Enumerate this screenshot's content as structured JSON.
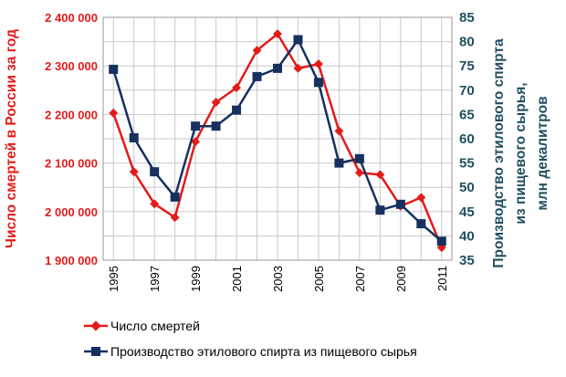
{
  "chart_data": {
    "type": "line",
    "x": [
      1995,
      1996,
      1997,
      1998,
      1999,
      2000,
      2001,
      2002,
      2003,
      2004,
      2005,
      2006,
      2007,
      2008,
      2009,
      2010,
      2011
    ],
    "x_tick_labels": [
      "1995",
      "1997",
      "1999",
      "2001",
      "2003",
      "2005",
      "2007",
      "2009",
      "2011"
    ],
    "series": [
      {
        "name": "Число смертей",
        "axis": "left",
        "color": "#e31b1b",
        "marker": "diamond",
        "values": [
          2203000,
          2082000,
          2016000,
          1988000,
          2144000,
          2225000,
          2255000,
          2332000,
          2366000,
          2295000,
          2304000,
          2166000,
          2080000,
          2076000,
          2011000,
          2029000,
          1926000
        ]
      },
      {
        "name": "Производство этилового спирта из пищевого сырья",
        "axis": "right",
        "color": "#16305f",
        "marker": "square",
        "values": [
          74.3,
          60.2,
          53.2,
          48.0,
          62.6,
          62.6,
          65.9,
          72.8,
          74.5,
          80.4,
          71.6,
          55.0,
          55.9,
          45.3,
          46.5,
          42.5,
          38.9
        ]
      }
    ],
    "y_left": {
      "label": "Число смертей в России за год",
      "range": [
        1900000,
        2400000
      ],
      "ticks": [
        1900000,
        2000000,
        2100000,
        2200000,
        2300000,
        2400000
      ],
      "tick_labels": [
        "1 900 000",
        "2 000 000",
        "2 100 000",
        "2 200 000",
        "2 300 000",
        "2 400 000"
      ]
    },
    "y_right": {
      "label_line1": "Производство этилового спирта",
      "label_line2": "из пищевого сырья,",
      "label_line3": "млн декалитров",
      "range": [
        35,
        85
      ],
      "ticks": [
        35,
        40,
        45,
        50,
        55,
        60,
        65,
        70,
        75,
        80,
        85
      ],
      "tick_labels": [
        "35",
        "40",
        "45",
        "50",
        "55",
        "60",
        "65",
        "70",
        "75",
        "80",
        "85"
      ]
    },
    "x_range": [
      1994.5,
      2011.5
    ],
    "grid": "both",
    "legend": "bottom"
  }
}
